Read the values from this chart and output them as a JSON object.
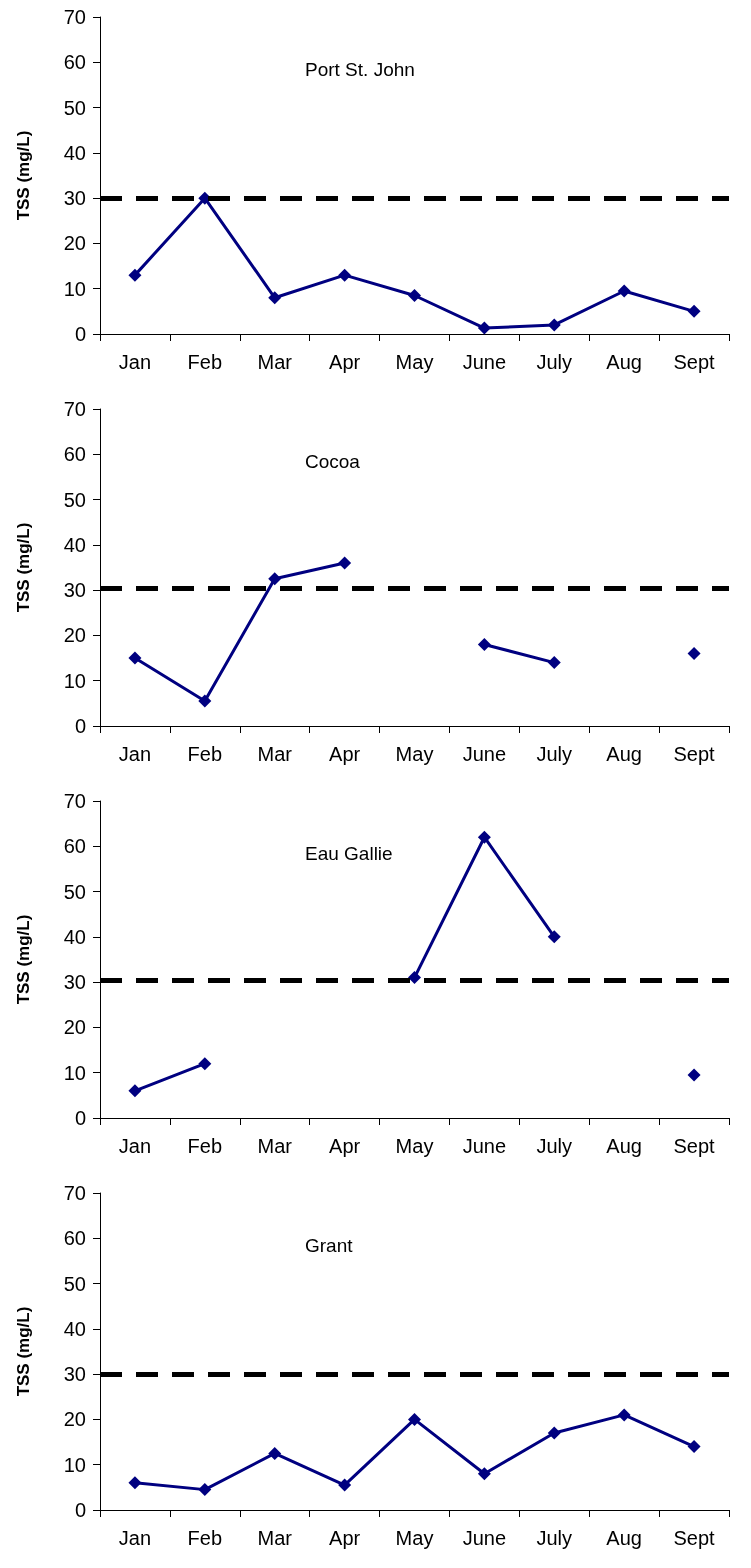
{
  "chart_data": [
    {
      "type": "line",
      "title": "Port St. John",
      "ylabel": "TSS (mg/L)",
      "categories": [
        "Jan",
        "Feb",
        "Mar",
        "Apr",
        "May",
        "June",
        "July",
        "Aug",
        "Sept"
      ],
      "series": [
        {
          "color": "#000080",
          "values": [
            13,
            30,
            8,
            13,
            8.5,
            1.3,
            2,
            9.5,
            5
          ]
        }
      ],
      "ylim": [
        0,
        70
      ],
      "yticks": [
        0,
        10,
        20,
        30,
        40,
        50,
        60,
        70
      ],
      "ref_lines": [
        {
          "axis": "y",
          "value": 30,
          "color": "#000000",
          "line_style": "dashed"
        }
      ],
      "marker": "diamond",
      "line_style": "solid",
      "grid": false
    },
    {
      "type": "line",
      "title": "Cocoa",
      "ylabel": "TSS (mg/L)",
      "categories": [
        "Jan",
        "Feb",
        "Mar",
        "Apr",
        "May",
        "June",
        "July",
        "Aug",
        "Sept"
      ],
      "series": [
        {
          "color": "#000080",
          "values": [
            15,
            5.5,
            32.5,
            36,
            null,
            18,
            14,
            null,
            16
          ]
        }
      ],
      "ylim": [
        0,
        70
      ],
      "yticks": [
        0,
        10,
        20,
        30,
        40,
        50,
        60,
        70
      ],
      "ref_lines": [
        {
          "axis": "y",
          "value": 30.5,
          "color": "#000000",
          "line_style": "dashed"
        }
      ],
      "marker": "diamond",
      "line_style": "solid",
      "grid": false
    },
    {
      "type": "line",
      "title": "Eau Gallie",
      "ylabel": "TSS (mg/L)",
      "categories": [
        "Jan",
        "Feb",
        "Mar",
        "Apr",
        "May",
        "June",
        "July",
        "Aug",
        "Sept"
      ],
      "series": [
        {
          "color": "#000080",
          "values": [
            6,
            12,
            null,
            null,
            31,
            62,
            40,
            null,
            9.5
          ]
        }
      ],
      "ylim": [
        0,
        70
      ],
      "yticks": [
        0,
        10,
        20,
        30,
        40,
        50,
        60,
        70
      ],
      "ref_lines": [
        {
          "axis": "y",
          "value": 30.5,
          "color": "#000000",
          "line_style": "dashed"
        }
      ],
      "marker": "diamond",
      "line_style": "solid",
      "grid": false
    },
    {
      "type": "line",
      "title": "Grant",
      "ylabel": "TSS (mg/L)",
      "categories": [
        "Jan",
        "Feb",
        "Mar",
        "Apr",
        "May",
        "June",
        "July",
        "Aug",
        "Sept"
      ],
      "series": [
        {
          "color": "#000080",
          "values": [
            6,
            4.5,
            12.5,
            5.5,
            20,
            8,
            17,
            21,
            14
          ]
        }
      ],
      "ylim": [
        0,
        70
      ],
      "yticks": [
        0,
        10,
        20,
        30,
        40,
        50,
        60,
        70
      ],
      "ref_lines": [
        {
          "axis": "y",
          "value": 30,
          "color": "#000000",
          "line_style": "dashed"
        }
      ],
      "marker": "diamond",
      "line_style": "solid",
      "grid": false
    }
  ]
}
